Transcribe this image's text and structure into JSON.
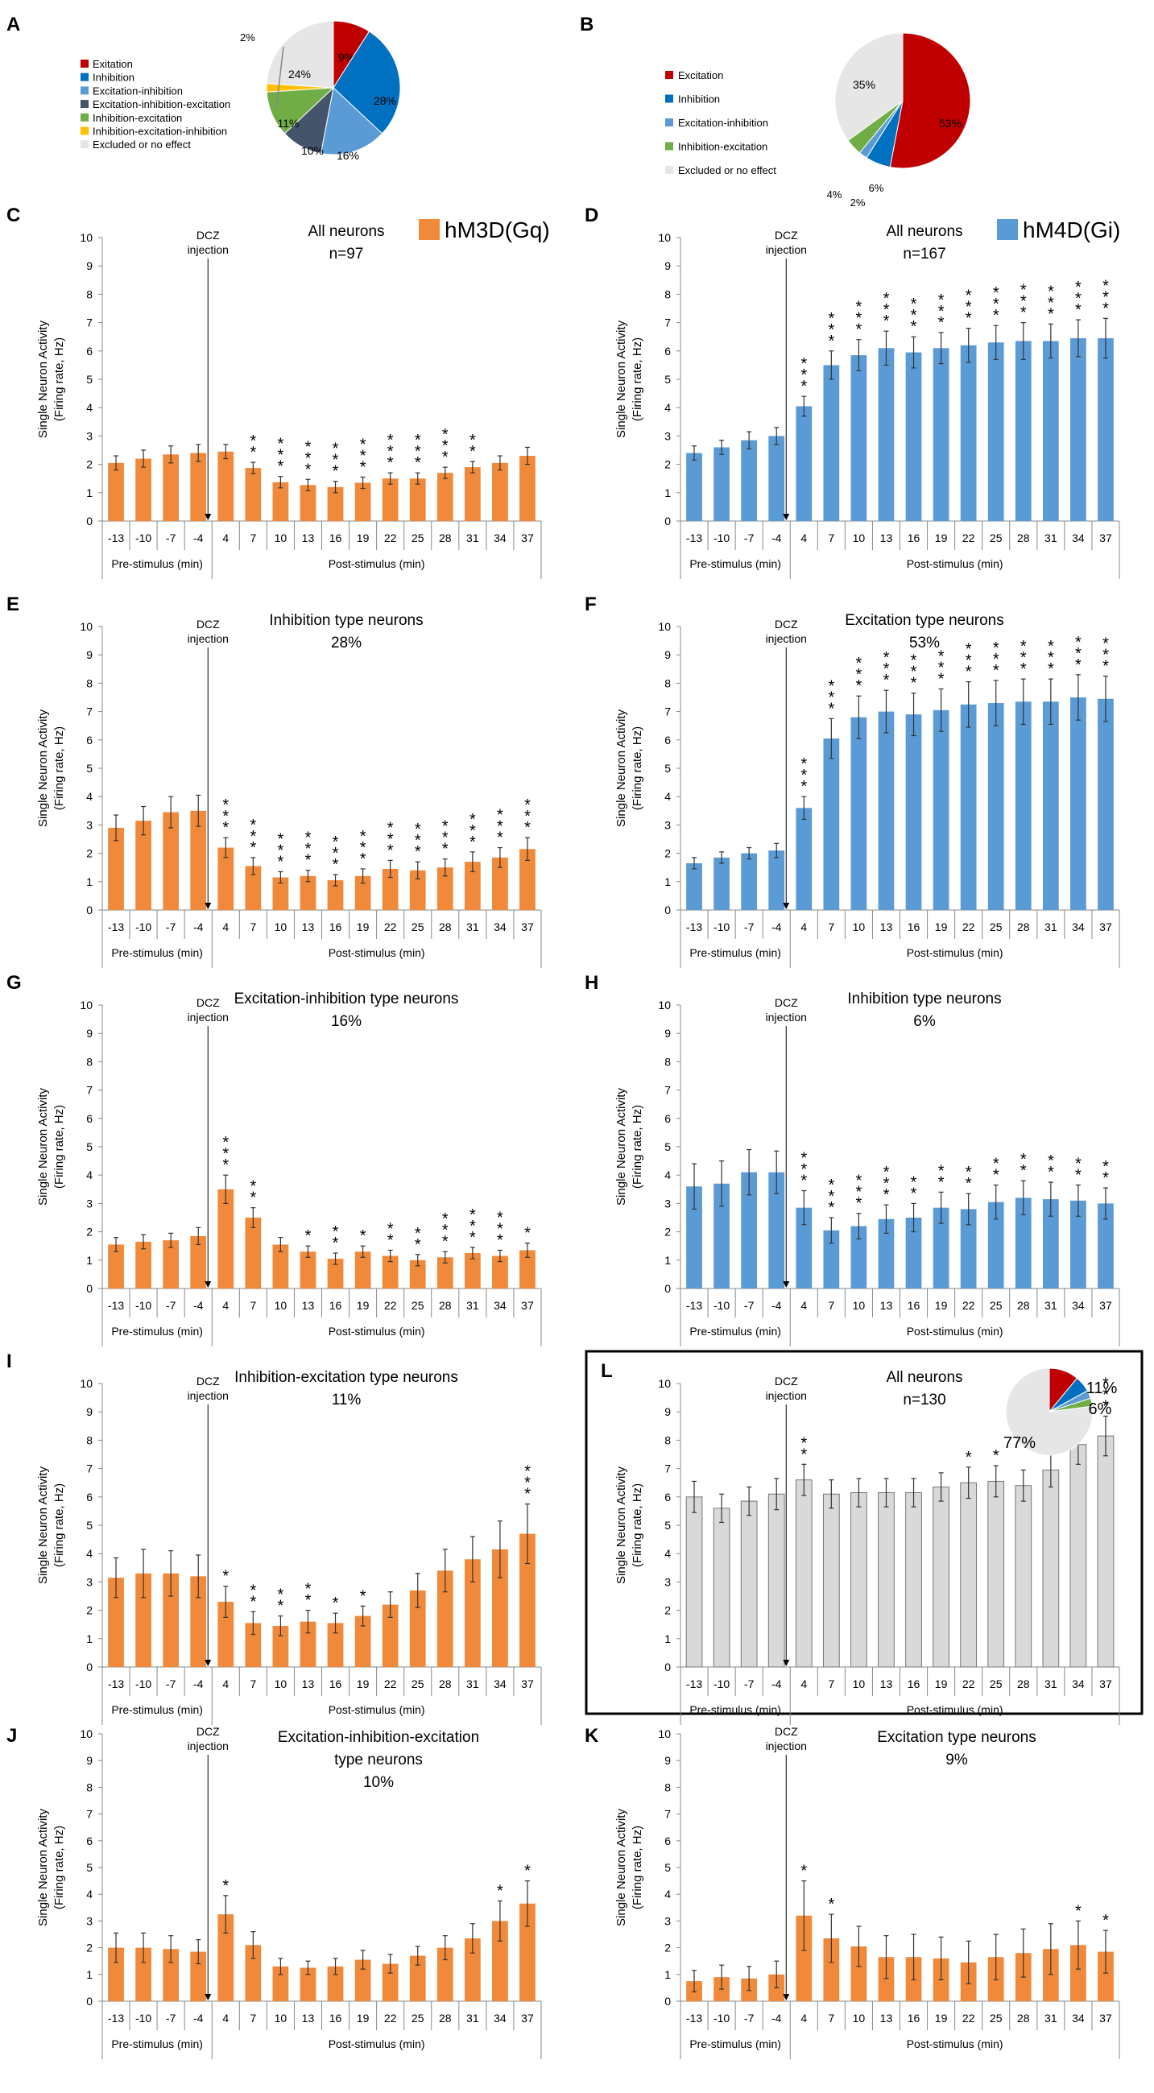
{
  "figure": {
    "stimulus_label": "DCZ\ninjection",
    "pre_label": "Pre-stimulus (min)",
    "post_label": "Post-stimulus (min)",
    "ylabel_line1": "Single Neuron Activity",
    "ylabel_line2": "(Firing rate, Hz)",
    "legend_gq": "hM3D(Gq)",
    "legend_gi": "hM4D(Gi)"
  },
  "colors": {
    "gq": "#F08A3A",
    "gi": "#5B9BD5",
    "control": "#D9D9D9",
    "excitation": "#C00000",
    "inhibition": "#0070C0",
    "exc_inh": "#5B9BD5",
    "exc_inh_exc": "#44546A",
    "inh_exc": "#70AD47",
    "inh_exc_inh": "#FFC000",
    "excluded": "#E7E6E6"
  },
  "chart_data": [
    {
      "panel": "A",
      "type": "pie",
      "legend": [
        "Exitation",
        "Inhibition",
        "Excitation-inhibition",
        "Excitation-inhibition-excitation",
        "Inhibition-excitation",
        "Inhibition-excitation-inhibition",
        "Excluded or no effect"
      ],
      "slices": [
        {
          "label": "9%",
          "value": 9,
          "color": "excitation"
        },
        {
          "label": "28%",
          "value": 28,
          "color": "inhibition"
        },
        {
          "label": "16%",
          "value": 16,
          "color": "exc_inh"
        },
        {
          "label": "10%",
          "value": 10,
          "color": "exc_inh_exc"
        },
        {
          "label": "11%",
          "value": 11,
          "color": "inh_exc"
        },
        {
          "label": "2%",
          "value": 2,
          "color": "inh_exc_inh"
        },
        {
          "label": "24%",
          "value": 24,
          "color": "excluded"
        }
      ]
    },
    {
      "panel": "B",
      "type": "pie",
      "legend": [
        "Excitation",
        "Inhibition",
        "Excitation-inhibition",
        "Inhibition-excitation",
        "Excluded or no effect"
      ],
      "slices": [
        {
          "label": "53%",
          "value": 53,
          "color": "excitation"
        },
        {
          "label": "6%",
          "value": 6,
          "color": "inhibition"
        },
        {
          "label": "2%",
          "value": 2,
          "color": "exc_inh"
        },
        {
          "label": "4%",
          "value": 4,
          "color": "inh_exc"
        },
        {
          "label": "35%",
          "value": 35,
          "color": "excluded"
        }
      ]
    },
    {
      "panel": "C",
      "type": "bar",
      "title": "All neurons",
      "subtitle": "n=97",
      "color": "gq",
      "legend": "gq",
      "categories": [
        "-13",
        "-10",
        "-7",
        "-4",
        "4",
        "7",
        "10",
        "13",
        "16",
        "19",
        "22",
        "25",
        "28",
        "31",
        "34",
        "37"
      ],
      "values": [
        2.05,
        2.2,
        2.35,
        2.4,
        2.45,
        1.87,
        1.37,
        1.27,
        1.2,
        1.35,
        1.5,
        1.5,
        1.7,
        1.9,
        2.05,
        2.3
      ],
      "errors": [
        0.25,
        0.3,
        0.3,
        0.3,
        0.25,
        0.2,
        0.2,
        0.2,
        0.2,
        0.2,
        0.2,
        0.2,
        0.2,
        0.2,
        0.25,
        0.3
      ],
      "stars": [
        "",
        "",
        "",
        "",
        "",
        "**",
        "***",
        "***",
        "***",
        "***",
        "***",
        "***",
        "***",
        "**",
        "",
        ""
      ],
      "xlabel": "",
      "ylabel": "Single Neuron Activity (Firing rate, Hz)",
      "ylim": [
        0,
        10
      ]
    },
    {
      "panel": "D",
      "type": "bar",
      "title": "All neurons",
      "subtitle": "n=167",
      "color": "gi",
      "legend": "gi",
      "categories": [
        "-13",
        "-10",
        "-7",
        "-4",
        "4",
        "7",
        "10",
        "13",
        "16",
        "19",
        "22",
        "25",
        "28",
        "31",
        "34",
        "37"
      ],
      "values": [
        2.4,
        2.6,
        2.85,
        3.0,
        4.05,
        5.5,
        5.85,
        6.1,
        5.95,
        6.1,
        6.2,
        6.3,
        6.35,
        6.35,
        6.45,
        6.45
      ],
      "errors": [
        0.25,
        0.25,
        0.3,
        0.3,
        0.35,
        0.5,
        0.55,
        0.6,
        0.55,
        0.55,
        0.6,
        0.6,
        0.65,
        0.6,
        0.65,
        0.7
      ],
      "stars": [
        "",
        "",
        "",
        "",
        "***",
        "***",
        "***",
        "***",
        "***",
        "***",
        "***",
        "***",
        "***",
        "***",
        "***",
        "***"
      ],
      "xlabel": "",
      "ylabel": "Single Neuron Activity (Firing rate, Hz)",
      "ylim": [
        0,
        10
      ]
    },
    {
      "panel": "E",
      "type": "bar",
      "title": "Inhibition type neurons",
      "subtitle": "28%",
      "color": "gq",
      "categories": [
        "-13",
        "-10",
        "-7",
        "-4",
        "4",
        "7",
        "10",
        "13",
        "16",
        "19",
        "22",
        "25",
        "28",
        "31",
        "34",
        "37"
      ],
      "values": [
        2.9,
        3.15,
        3.45,
        3.5,
        2.2,
        1.55,
        1.15,
        1.2,
        1.05,
        1.2,
        1.45,
        1.4,
        1.5,
        1.7,
        1.85,
        2.15
      ],
      "errors": [
        0.45,
        0.5,
        0.55,
        0.55,
        0.35,
        0.3,
        0.2,
        0.2,
        0.2,
        0.25,
        0.3,
        0.3,
        0.3,
        0.35,
        0.35,
        0.4
      ],
      "stars": [
        "",
        "",
        "",
        "",
        "***",
        "***",
        "***",
        "***",
        "***",
        "***",
        "***",
        "***",
        "***",
        "***",
        "***",
        "***"
      ],
      "xlabel": "",
      "ylabel": "Single Neuron Activity (Firing rate, Hz)",
      "ylim": [
        0,
        10
      ]
    },
    {
      "panel": "F",
      "type": "bar",
      "title": "Excitation type neurons",
      "subtitle": "53%",
      "color": "gi",
      "categories": [
        "-13",
        "-10",
        "-7",
        "-4",
        "4",
        "7",
        "10",
        "13",
        "16",
        "19",
        "22",
        "25",
        "28",
        "31",
        "34",
        "37"
      ],
      "values": [
        1.65,
        1.85,
        2.0,
        2.1,
        3.6,
        6.05,
        6.8,
        7.0,
        6.9,
        7.05,
        7.25,
        7.3,
        7.35,
        7.35,
        7.5,
        7.45
      ],
      "errors": [
        0.2,
        0.2,
        0.2,
        0.25,
        0.4,
        0.7,
        0.75,
        0.75,
        0.75,
        0.75,
        0.8,
        0.8,
        0.8,
        0.8,
        0.8,
        0.8
      ],
      "stars": [
        "",
        "",
        "",
        "",
        "***",
        "***",
        "***",
        "***",
        "***",
        "***",
        "***",
        "***",
        "***",
        "***",
        "***",
        "***"
      ],
      "xlabel": "",
      "ylabel": "Single Neuron Activity (Firing rate, Hz)",
      "ylim": [
        0,
        10
      ]
    },
    {
      "panel": "G",
      "type": "bar",
      "title": "Excitation-inhibition type neurons",
      "subtitle": "16%",
      "color": "gq",
      "categories": [
        "-13",
        "-10",
        "-7",
        "-4",
        "4",
        "7",
        "10",
        "13",
        "16",
        "19",
        "22",
        "25",
        "28",
        "31",
        "34",
        "37"
      ],
      "values": [
        1.55,
        1.65,
        1.7,
        1.85,
        3.5,
        2.5,
        1.55,
        1.3,
        1.05,
        1.3,
        1.15,
        1.0,
        1.1,
        1.25,
        1.15,
        1.35
      ],
      "errors": [
        0.25,
        0.25,
        0.25,
        0.3,
        0.5,
        0.35,
        0.25,
        0.2,
        0.2,
        0.2,
        0.2,
        0.2,
        0.2,
        0.2,
        0.2,
        0.25
      ],
      "stars": [
        "",
        "",
        "",
        "",
        "***",
        "**",
        "",
        "*",
        "**",
        "*",
        "**",
        "**",
        "***",
        "***",
        "***",
        "*"
      ],
      "xlabel": "",
      "ylabel": "Single Neuron Activity (Firing rate, Hz)",
      "ylim": [
        0,
        10
      ]
    },
    {
      "panel": "H",
      "type": "bar",
      "title": "Inhibition type neurons",
      "subtitle": "6%",
      "color": "gi",
      "categories": [
        "-13",
        "-10",
        "-7",
        "-4",
        "4",
        "7",
        "10",
        "13",
        "16",
        "19",
        "22",
        "25",
        "28",
        "31",
        "34",
        "37"
      ],
      "values": [
        3.6,
        3.7,
        4.1,
        4.1,
        2.85,
        2.05,
        2.2,
        2.45,
        2.5,
        2.85,
        2.8,
        3.05,
        3.2,
        3.15,
        3.1,
        3.0
      ],
      "errors": [
        0.8,
        0.8,
        0.8,
        0.75,
        0.6,
        0.45,
        0.45,
        0.5,
        0.5,
        0.55,
        0.55,
        0.6,
        0.6,
        0.6,
        0.55,
        0.55
      ],
      "stars": [
        "",
        "",
        "",
        "",
        "***",
        "***",
        "***",
        "***",
        "**",
        "**",
        "**",
        "**",
        "**",
        "**",
        "**",
        "**"
      ],
      "xlabel": "",
      "ylabel": "Single Neuron Activity (Firing rate, Hz)",
      "ylim": [
        0,
        10
      ]
    },
    {
      "panel": "I",
      "type": "bar",
      "title": "Inhibition-excitation type neurons",
      "subtitle": "11%",
      "color": "gq",
      "categories": [
        "-13",
        "-10",
        "-7",
        "-4",
        "4",
        "7",
        "10",
        "13",
        "16",
        "19",
        "22",
        "25",
        "28",
        "31",
        "34",
        "37"
      ],
      "values": [
        3.15,
        3.3,
        3.3,
        3.2,
        2.3,
        1.55,
        1.45,
        1.6,
        1.55,
        1.8,
        2.2,
        2.7,
        3.4,
        3.8,
        4.15,
        4.7
      ],
      "errors": [
        0.7,
        0.85,
        0.8,
        0.75,
        0.55,
        0.4,
        0.35,
        0.4,
        0.35,
        0.35,
        0.45,
        0.6,
        0.75,
        0.8,
        1.0,
        1.05
      ],
      "stars": [
        "",
        "",
        "",
        "",
        "*",
        "**",
        "**",
        "**",
        "*",
        "*",
        "",
        "",
        "",
        "",
        "",
        "***"
      ],
      "xlabel": "",
      "ylabel": "Single Neuron Activity (Firing rate, Hz)",
      "ylim": [
        0,
        10
      ]
    },
    {
      "panel": "L",
      "type": "bar",
      "title": "All neurons",
      "subtitle": "n=130",
      "color": "control",
      "boxed": true,
      "categories": [
        "-13",
        "-10",
        "-7",
        "-4",
        "4",
        "7",
        "10",
        "13",
        "16",
        "19",
        "22",
        "25",
        "28",
        "31",
        "34",
        "37"
      ],
      "values": [
        6.0,
        5.6,
        5.85,
        6.1,
        6.6,
        6.1,
        6.15,
        6.15,
        6.15,
        6.35,
        6.5,
        6.55,
        6.4,
        6.95,
        7.85,
        8.15
      ],
      "errors": [
        0.55,
        0.5,
        0.5,
        0.55,
        0.55,
        0.5,
        0.5,
        0.5,
        0.5,
        0.5,
        0.55,
        0.55,
        0.55,
        0.6,
        0.7,
        0.7
      ],
      "stars": [
        "",
        "",
        "",
        "",
        "**",
        "",
        "",
        "",
        "",
        "",
        "*",
        "*",
        "",
        "***",
        "***",
        "***"
      ],
      "inset_pie": [
        {
          "label": "",
          "value": 11,
          "color": "excitation"
        },
        {
          "label": "",
          "value": 6,
          "color": "inhibition"
        },
        {
          "label": "",
          "value": 3,
          "color": "exc_inh"
        },
        {
          "label": "",
          "value": 3,
          "color": "inh_exc"
        },
        {
          "label": "77%",
          "value": 77,
          "color": "excluded"
        }
      ],
      "inset_labels": [
        "11%",
        "6%"
      ],
      "xlabel": "",
      "ylabel": "Single Neuron Activity (Firing rate, Hz)",
      "ylim": [
        0,
        10
      ]
    },
    {
      "panel": "J",
      "type": "bar",
      "title": "Excitation-inhibition-excitation",
      "subtitle": "type neurons",
      "subtitle2": "10%",
      "color": "gq",
      "categories": [
        "-13",
        "-10",
        "-7",
        "-4",
        "4",
        "7",
        "10",
        "13",
        "16",
        "19",
        "22",
        "25",
        "28",
        "31",
        "34",
        "37"
      ],
      "values": [
        2.0,
        2.0,
        1.95,
        1.85,
        3.25,
        2.1,
        1.3,
        1.25,
        1.3,
        1.55,
        1.4,
        1.7,
        2.0,
        2.35,
        3.0,
        3.65
      ],
      "errors": [
        0.55,
        0.55,
        0.5,
        0.45,
        0.7,
        0.5,
        0.3,
        0.25,
        0.3,
        0.35,
        0.35,
        0.35,
        0.45,
        0.55,
        0.75,
        0.85
      ],
      "stars": [
        "",
        "",
        "",
        "",
        "*",
        "",
        "",
        "",
        "",
        "",
        "",
        "",
        "",
        "",
        "*",
        "*"
      ],
      "xlabel": "",
      "ylabel": "Single Neuron Activity (Firing rate, Hz)",
      "ylim": [
        0,
        10
      ]
    },
    {
      "panel": "K",
      "type": "bar",
      "title": "Excitation type neurons",
      "subtitle": "9%",
      "color": "gq",
      "categories": [
        "-13",
        "-10",
        "-7",
        "-4",
        "4",
        "7",
        "10",
        "13",
        "16",
        "19",
        "22",
        "25",
        "28",
        "31",
        "34",
        "37"
      ],
      "values": [
        0.75,
        0.9,
        0.85,
        1.0,
        3.2,
        2.35,
        2.05,
        1.65,
        1.65,
        1.6,
        1.45,
        1.65,
        1.8,
        1.95,
        2.1,
        1.85
      ],
      "errors": [
        0.4,
        0.45,
        0.45,
        0.5,
        1.3,
        0.9,
        0.75,
        0.8,
        0.85,
        0.8,
        0.8,
        0.85,
        0.9,
        0.95,
        0.9,
        0.8
      ],
      "stars": [
        "",
        "",
        "",
        "",
        "*",
        "*",
        "",
        "",
        "",
        "",
        "",
        "",
        "",
        "",
        "*",
        "*"
      ],
      "xlabel": "",
      "ylabel": "Single Neuron Activity (Firing rate, Hz)",
      "ylim": [
        0,
        10
      ]
    }
  ]
}
